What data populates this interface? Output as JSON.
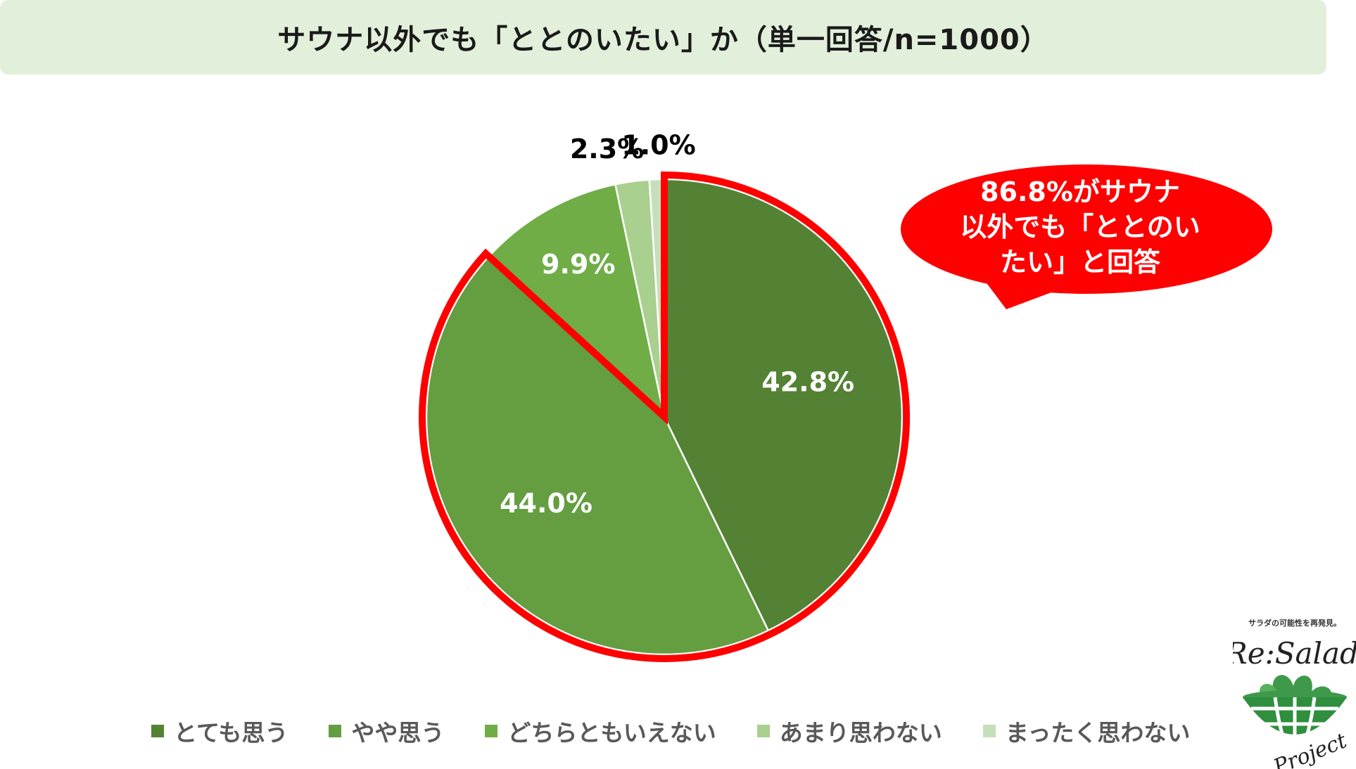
{
  "title": "サウナ以外でも「ととのいたい」か（単一回答/n=1000）",
  "chart_data": {
    "type": "pie",
    "title": "サウナ以外でも「ととのいたい」か（単一回答/n=1000）",
    "start_angle": "12 o'clock",
    "direction": "clockwise",
    "slices": [
      {
        "label": "とても思う",
        "value": 42.8,
        "display": "42.8%",
        "color": "#548235"
      },
      {
        "label": "やや思う",
        "value": 44.0,
        "display": "44.0%",
        "color": "#659d41"
      },
      {
        "label": "どちらともいえない",
        "value": 9.9,
        "display": "9.9%",
        "color": "#70ad47"
      },
      {
        "label": "あまり思わない",
        "value": 2.3,
        "display": "2.3%",
        "color": "#a9d08e"
      },
      {
        "label": "まったく思わない",
        "value": 1.0,
        "display": "1.0%",
        "color": "#c6dfbb"
      }
    ],
    "legend_position": "bottom",
    "highlight": {
      "slices": [
        "とても思う",
        "やや思う"
      ],
      "outline_color": "#ff0000"
    }
  },
  "callout": {
    "lines": [
      "86.8%がサウナ",
      "以外でも「ととのい",
      "たい」と回答"
    ],
    "color": "#ff0000"
  },
  "logo": {
    "tagline": "サラダの可能性を再発見。",
    "name_top": "Re:Salad",
    "name_bottom": "Project"
  }
}
